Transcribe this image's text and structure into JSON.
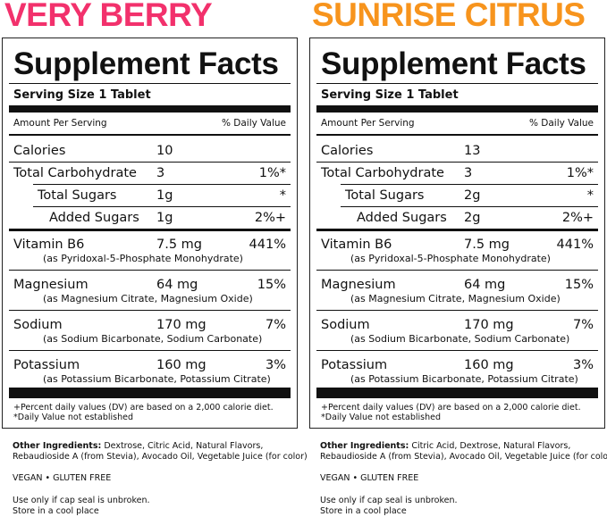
{
  "panels": [
    {
      "brand": "VERY BERRY",
      "brand_color": "#f2316c",
      "title": "Supplement Facts",
      "serving": "Serving Size 1 Tablet",
      "amount_header": "Amount Per Serving",
      "dv_header": "% Daily Value",
      "rows": [
        {
          "name": "Calories",
          "amount": "10",
          "dv": ""
        },
        {
          "name": "Total Carbohydrate",
          "amount": "3",
          "dv": "1%*"
        },
        {
          "name": "Total Sugars",
          "amount": "1g",
          "dv": "*"
        },
        {
          "name": "Added Sugars",
          "amount": "1g",
          "dv": "2%+"
        },
        {
          "name": "Vitamin B6",
          "amount": "7.5 mg",
          "dv": "441%",
          "sub": "(as Pyridoxal-5-Phosphate Monohydrate)"
        },
        {
          "name": "Magnesium",
          "amount": "64 mg",
          "dv": "15%",
          "sub": "(as Magnesium Citrate, Magnesium Oxide)"
        },
        {
          "name": "Sodium",
          "amount": "170 mg",
          "dv": "7%",
          "sub": "(as Sodium Bicarbonate, Sodium Carbonate)"
        },
        {
          "name": "Potassium",
          "amount": "160 mg",
          "dv": "3%",
          "sub": "(as Potassium Bicarbonate, Potassium Citrate)"
        }
      ],
      "footnotes": [
        "+Percent daily values (DV) are based on a 2,000 calorie diet.",
        "*Daily Value not established"
      ],
      "other_label": "Other Ingredients:",
      "other_text": "Dextrose, Citric Acid, Natural Flavors, Rebaudioside A (from Stevia), Avocado Oil, Vegetable Juice (for color)",
      "claims": "VEGAN • GLUTEN FREE",
      "notes": [
        "Use only if cap seal is unbroken.",
        "Store in a cool place"
      ]
    },
    {
      "brand": "SUNRISE CITRUS",
      "brand_color": "#f7941d",
      "title": "Supplement Facts",
      "serving": "Serving Size 1 Tablet",
      "amount_header": "Amount Per Serving",
      "dv_header": "% Daily Value",
      "rows": [
        {
          "name": "Calories",
          "amount": "13",
          "dv": ""
        },
        {
          "name": "Total Carbohydrate",
          "amount": "3",
          "dv": "1%*"
        },
        {
          "name": "Total Sugars",
          "amount": "2g",
          "dv": "*"
        },
        {
          "name": "Added Sugars",
          "amount": "2g",
          "dv": "2%+"
        },
        {
          "name": "Vitamin B6",
          "amount": "7.5 mg",
          "dv": "441%",
          "sub": "(as Pyridoxal-5-Phosphate Monohydrate)"
        },
        {
          "name": "Magnesium",
          "amount": "64 mg",
          "dv": "15%",
          "sub": "(as Magnesium Citrate, Magnesium Oxide)"
        },
        {
          "name": "Sodium",
          "amount": "170 mg",
          "dv": "7%",
          "sub": "(as Sodium Bicarbonate, Sodium Carbonate)"
        },
        {
          "name": "Potassium",
          "amount": "160 mg",
          "dv": "3%",
          "sub": "(as Potassium Bicarbonate, Potassium Citrate)"
        }
      ],
      "footnotes": [
        "+Percent daily values (DV) are based on a 2,000 calorie diet.",
        "*Daily Value not established"
      ],
      "other_label": "Other Ingredients:",
      "other_text": "Citric Acid, Dextrose, Natural Flavors, Rebaudioside A (from Stevia), Avocado Oil, Vegetable Juice (for color)",
      "claims": "VEGAN • GLUTEN FREE",
      "notes": [
        "Use only if cap seal is unbroken.",
        "Store in a cool place"
      ]
    }
  ]
}
